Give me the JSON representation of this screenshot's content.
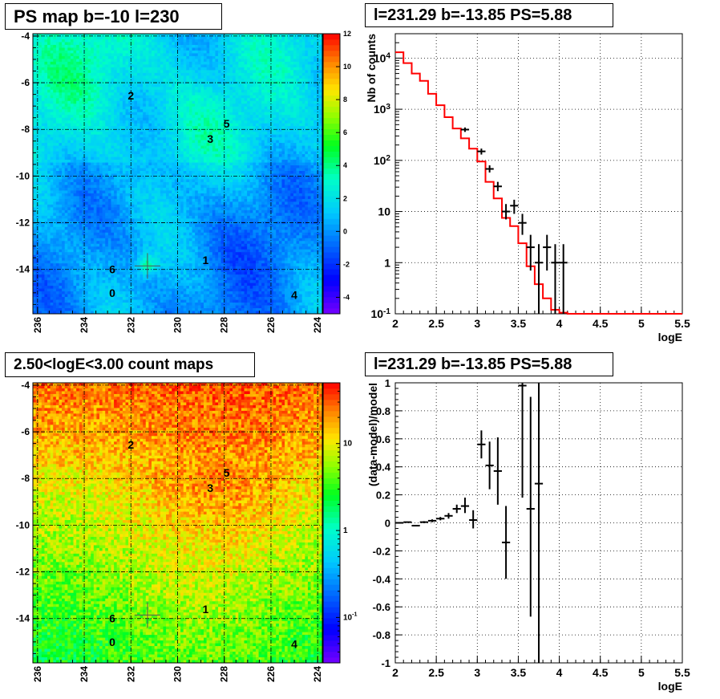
{
  "chart_data": [
    {
      "type": "heatmap",
      "title": "PS map b=-10 l=230",
      "x_ticks": [
        236,
        234,
        232,
        230,
        228,
        226,
        224
      ],
      "y_ticks": [
        -4,
        -6,
        -8,
        -10,
        -12,
        -14
      ],
      "xlim": [
        236.2,
        223.8
      ],
      "ylim": [
        -15.9,
        -3.9
      ],
      "colorbar_ticks": [
        -4,
        -2,
        0,
        2,
        4,
        6,
        8,
        10,
        12
      ],
      "colorbar_range": [
        -5,
        12
      ],
      "grid": true,
      "marker": {
        "l": 231.29,
        "b": -13.85
      },
      "sources": [
        {
          "label": "0",
          "l": 232.8,
          "b": -15.0
        },
        {
          "label": "1",
          "l": 228.8,
          "b": -13.6
        },
        {
          "label": "2",
          "l": 232.0,
          "b": -6.55
        },
        {
          "label": "3",
          "l": 228.6,
          "b": -8.4
        },
        {
          "label": "4",
          "l": 225.0,
          "b": -15.1
        },
        {
          "label": "5",
          "l": 227.9,
          "b": -7.75
        },
        {
          "label": "6",
          "l": 232.8,
          "b": -14.0
        }
      ]
    },
    {
      "type": "line",
      "title": "l=231.29 b=-13.85 PS=5.88",
      "xlabel": "logE",
      "ylabel": "Nb of counts",
      "xlim": [
        2,
        5.5
      ],
      "ylim": [
        0.1,
        30000
      ],
      "log_y": true,
      "x_ticks": [
        "2",
        "2.5",
        "3",
        "3.5",
        "4",
        "4.5",
        "5",
        "5.5"
      ],
      "y_ticks": [
        {
          "v": 0.1,
          "label": "10",
          "exp": "-1"
        },
        {
          "v": 1,
          "label": "1",
          "exp": ""
        },
        {
          "v": 10,
          "label": "10",
          "exp": ""
        },
        {
          "v": 100,
          "label": "10",
          "exp": "2"
        },
        {
          "v": 1000,
          "label": "10",
          "exp": "3"
        },
        {
          "v": 10000,
          "label": "10",
          "exp": "4"
        }
      ],
      "grid": true,
      "series": [
        {
          "color": "#ff0000",
          "step_edges": [
            2.0,
            2.1,
            2.2,
            2.3,
            2.4,
            2.5,
            2.6,
            2.7,
            2.8,
            2.9,
            3.0,
            3.1,
            3.2,
            3.3,
            3.4,
            3.5,
            3.6,
            3.7,
            3.8,
            3.9,
            4.0,
            4.1,
            5.5
          ],
          "values": [
            13000,
            8000,
            5000,
            3600,
            2000,
            1200,
            700,
            420,
            270,
            170,
            95,
            38,
            18,
            7.5,
            5.2,
            2.4,
            0.85,
            0.38,
            0.2,
            0.12,
            0.105,
            0.1
          ]
        },
        {
          "color": "#000000",
          "points": [
            {
              "x": 2.85,
              "y": 400,
              "lo": 360,
              "hi": 440
            },
            {
              "x": 3.05,
              "y": 150,
              "lo": 130,
              "hi": 170
            },
            {
              "x": 3.15,
              "y": 68,
              "lo": 58,
              "hi": 80
            },
            {
              "x": 3.25,
              "y": 31,
              "lo": 25,
              "hi": 38
            },
            {
              "x": 3.35,
              "y": 10,
              "lo": 7,
              "hi": 14
            },
            {
              "x": 3.45,
              "y": 13,
              "lo": 9,
              "hi": 17
            },
            {
              "x": 3.55,
              "y": 6,
              "lo": 3.5,
              "hi": 9
            },
            {
              "x": 3.65,
              "y": 2,
              "lo": 0.7,
              "hi": 3.5
            },
            {
              "x": 3.85,
              "y": 2,
              "lo": 0.7,
              "hi": 3.5
            },
            {
              "x": 3.75,
              "y": 1,
              "lo": 0.1,
              "hi": 2.3
            },
            {
              "x": 3.95,
              "y": 1,
              "lo": 0.1,
              "hi": 2.3
            },
            {
              "x": 4.05,
              "y": 1,
              "lo": 0.1,
              "hi": 2.3
            }
          ]
        }
      ]
    },
    {
      "type": "heatmap",
      "title": "2.50<logE<3.00 count maps",
      "x_ticks": [
        236,
        234,
        232,
        230,
        228,
        226,
        224
      ],
      "y_ticks": [
        -4,
        -6,
        -8,
        -10,
        -12,
        -14
      ],
      "xlim": [
        236.2,
        223.8
      ],
      "ylim": [
        -15.9,
        -3.9
      ],
      "colorbar_log": true,
      "colorbar_ticks": [
        {
          "v": 0.1,
          "label": "10",
          "exp": "-1"
        },
        {
          "v": 1,
          "label": "1",
          "exp": ""
        },
        {
          "v": 10,
          "label": "10",
          "exp": ""
        }
      ],
      "colorbar_range": [
        0.03,
        50
      ],
      "grid": true,
      "marker": {
        "l": 231.29,
        "b": -13.85
      },
      "sources": [
        {
          "label": "0",
          "l": 232.8,
          "b": -15.0
        },
        {
          "label": "1",
          "l": 228.8,
          "b": -13.6
        },
        {
          "label": "2",
          "l": 232.0,
          "b": -6.55
        },
        {
          "label": "3",
          "l": 228.6,
          "b": -8.4
        },
        {
          "label": "4",
          "l": 225.0,
          "b": -15.1
        },
        {
          "label": "5",
          "l": 227.9,
          "b": -7.75
        },
        {
          "label": "6",
          "l": 232.8,
          "b": -14.0
        }
      ]
    },
    {
      "type": "scatter",
      "title": "l=231.29 b=-13.85 PS=5.88",
      "xlabel": "logE",
      "ylabel": "(data-model)/model",
      "xlim": [
        2,
        5.5
      ],
      "ylim": [
        -1,
        1
      ],
      "x_ticks": [
        "2",
        "2.5",
        "3",
        "3.5",
        "4",
        "4.5",
        "5",
        "5.5"
      ],
      "y_ticks": [
        "-1",
        "-0.8",
        "-0.6",
        "-0.4",
        "-0.2",
        "0",
        "0.2",
        "0.4",
        "0.6",
        "0.8",
        "1"
      ],
      "grid": true,
      "series": [
        {
          "color": "#000000",
          "points": [
            {
              "x": 2.05,
              "y": 0.0,
              "lo": -0.003,
              "hi": 0.003
            },
            {
              "x": 2.15,
              "y": 0.005,
              "lo": 0.002,
              "hi": 0.008
            },
            {
              "x": 2.25,
              "y": -0.02,
              "lo": -0.025,
              "hi": -0.015
            },
            {
              "x": 2.35,
              "y": 0.005,
              "lo": -0.002,
              "hi": 0.012
            },
            {
              "x": 2.45,
              "y": 0.015,
              "lo": 0.005,
              "hi": 0.025
            },
            {
              "x": 2.55,
              "y": 0.03,
              "lo": 0.018,
              "hi": 0.042
            },
            {
              "x": 2.65,
              "y": 0.05,
              "lo": 0.03,
              "hi": 0.07
            },
            {
              "x": 2.75,
              "y": 0.1,
              "lo": 0.07,
              "hi": 0.13
            },
            {
              "x": 2.85,
              "y": 0.12,
              "lo": 0.07,
              "hi": 0.18
            },
            {
              "x": 2.95,
              "y": 0.02,
              "lo": -0.04,
              "hi": 0.09
            },
            {
              "x": 3.05,
              "y": 0.56,
              "lo": 0.46,
              "hi": 0.66
            },
            {
              "x": 3.15,
              "y": 0.41,
              "lo": 0.24,
              "hi": 0.58
            },
            {
              "x": 3.25,
              "y": 0.37,
              "lo": 0.13,
              "hi": 0.61
            },
            {
              "x": 3.35,
              "y": -0.14,
              "lo": -0.4,
              "hi": 0.12
            },
            {
              "x": 3.55,
              "y": 0.98,
              "lo": 0.18,
              "hi": 1.0
            },
            {
              "x": 3.65,
              "y": 0.1,
              "lo": -0.67,
              "hi": 0.9
            },
            {
              "x": 3.75,
              "y": 0.28,
              "lo": -1.0,
              "hi": 1.0
            }
          ]
        }
      ]
    }
  ]
}
